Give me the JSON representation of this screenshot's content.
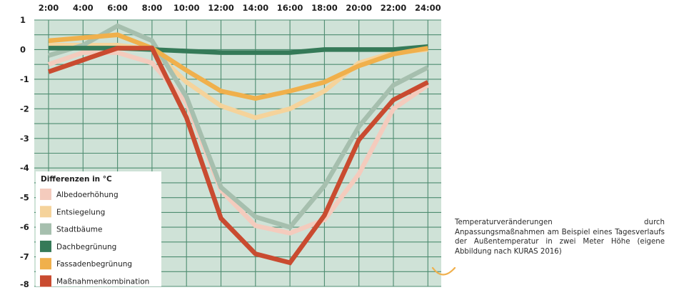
{
  "chart_data": {
    "type": "line",
    "title": "",
    "xlabel": "",
    "ylabel": "",
    "x": [
      "2:00",
      "4:00",
      "6:00",
      "8:00",
      "10:00",
      "12:00",
      "14:00",
      "16:00",
      "18:00",
      "20:00",
      "22:00",
      "24:00"
    ],
    "yticks": [
      "1",
      "0",
      "-1",
      "-2",
      "-3",
      "-4",
      "-5",
      "-6",
      "-7",
      "-8"
    ],
    "ylim": [
      -8,
      1
    ],
    "grid": true,
    "x_axis_position": "top",
    "background": "#cfe2d7",
    "grid_color": "#4e8c70",
    "legend": {
      "title": "Differenzen in °C",
      "placement": "bottom-left"
    },
    "series": [
      {
        "name": "Albedoerhöhung",
        "color": "#f4cbbd",
        "values": [
          -0.5,
          -0.1,
          -0.1,
          -0.45,
          -1.8,
          -4.75,
          -5.95,
          -6.2,
          -5.75,
          -4.2,
          -2.0,
          -1.2
        ]
      },
      {
        "name": "Entsiegelung",
        "color": "#f5d39b",
        "values": [
          0.15,
          0.15,
          0.15,
          0.0,
          -1.1,
          -1.9,
          -2.3,
          -2.0,
          -1.4,
          -0.45,
          -0.1,
          0.0
        ]
      },
      {
        "name": "Stadtbäume",
        "color": "#a6bfae",
        "values": [
          -0.2,
          0.15,
          0.8,
          0.3,
          -1.6,
          -4.65,
          -5.65,
          -6.0,
          -4.6,
          -2.6,
          -1.2,
          -0.6
        ]
      },
      {
        "name": "Dachbegrünung",
        "color": "#357a58",
        "values": [
          0.05,
          0.05,
          0.05,
          0.0,
          -0.05,
          -0.1,
          -0.1,
          -0.1,
          0.0,
          0.0,
          0.0,
          0.1
        ]
      },
      {
        "name": "Fassadenbegrünung",
        "color": "#f0b04c",
        "values": [
          0.3,
          0.4,
          0.5,
          0.05,
          -0.7,
          -1.4,
          -1.65,
          -1.4,
          -1.1,
          -0.55,
          -0.15,
          0.05
        ]
      },
      {
        "name": "Maßnahmenkombination",
        "color": "#c94b30",
        "values": [
          -0.75,
          -0.35,
          0.05,
          0.05,
          -2.3,
          -5.7,
          -6.9,
          -7.2,
          -5.6,
          -3.05,
          -1.7,
          -1.1
        ]
      }
    ]
  },
  "caption": "Temperaturveränderungen durch Anpassungsmaßnahmen am Beispiel eines Tagesverlaufs der Außentemperatur in zwei Meter Höhe (eigene Abbildung nach KURAS 2016)",
  "ornament_color": "#f0b04c"
}
